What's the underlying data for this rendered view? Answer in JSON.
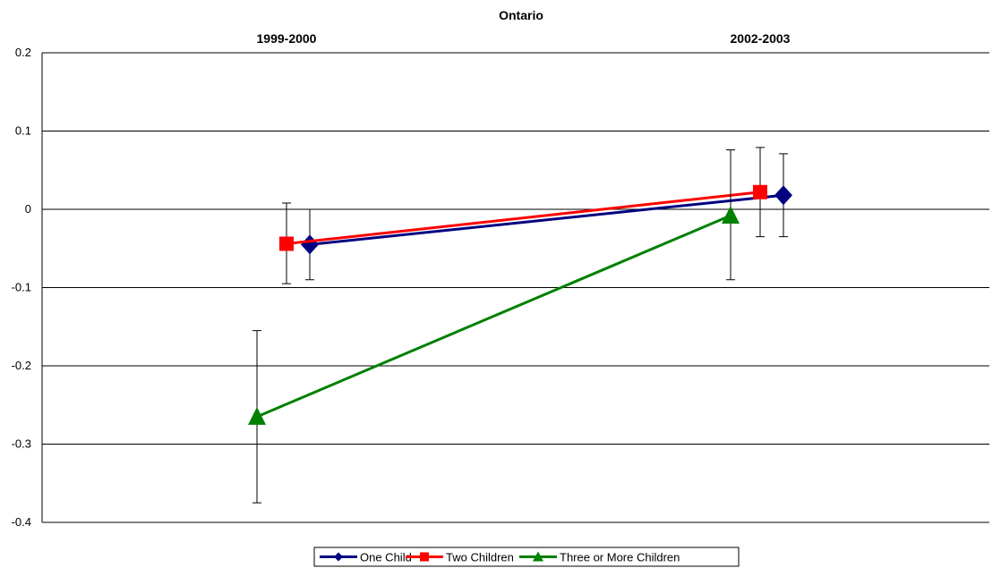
{
  "chart_data": {
    "type": "line",
    "title": "Ontario",
    "categories": [
      "1999-2000",
      "2002-2003"
    ],
    "ylim": [
      -0.4,
      0.2
    ],
    "yticks": [
      0.2,
      0.1,
      0,
      -0.1,
      -0.2,
      -0.3,
      -0.4
    ],
    "ytick_labels": [
      "0.2",
      "0.1",
      "0",
      "-0.1",
      "-0.2",
      "-0.3",
      "-0.4"
    ],
    "grid": true,
    "legend_position": "bottom",
    "series": [
      {
        "name": "One Child",
        "color": "#000080",
        "marker": "diamond",
        "values": [
          -0.045,
          0.018
        ],
        "error_low": [
          -0.09,
          -0.035
        ],
        "error_high": [
          0.0,
          0.071
        ]
      },
      {
        "name": "Two Children",
        "color": "#ff0000",
        "marker": "square",
        "values": [
          -0.044,
          0.022
        ],
        "error_low": [
          -0.095,
          -0.035
        ],
        "error_high": [
          0.008,
          0.079
        ]
      },
      {
        "name": "Three or More Children",
        "color": "#008000",
        "marker": "triangle",
        "values": [
          -0.265,
          -0.008
        ],
        "error_low": [
          -0.375,
          -0.09
        ],
        "error_high": [
          -0.155,
          0.076
        ]
      }
    ]
  }
}
